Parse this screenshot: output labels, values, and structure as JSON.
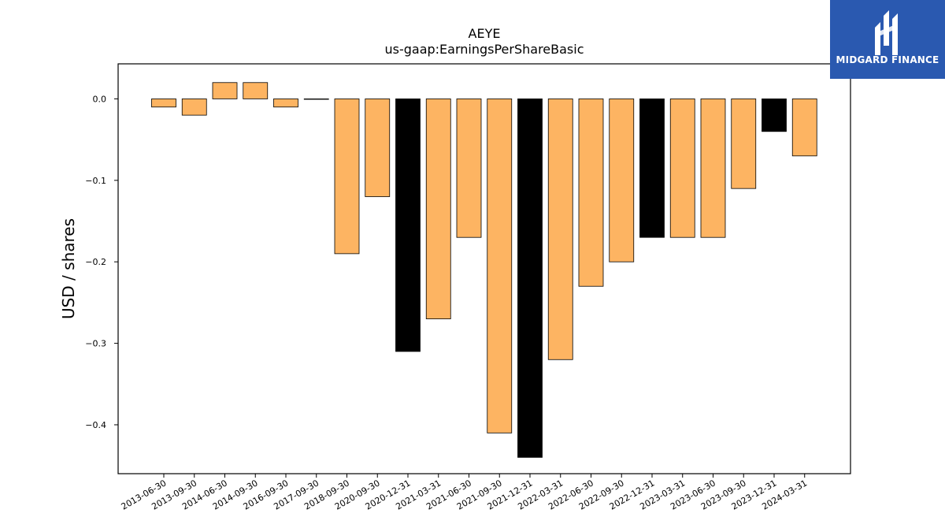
{
  "chart_data": {
    "type": "bar",
    "title": "AEYE",
    "subtitle": "us-gaap:EarningsPerShareBasic",
    "xlabel": "",
    "ylabel": "USD / shares",
    "ylim": [
      -0.46,
      0.043
    ],
    "yticks": [
      0.0,
      -0.1,
      -0.2,
      -0.3,
      -0.4
    ],
    "ytick_labels": [
      "0.0",
      "−0.1",
      "−0.2",
      "−0.3",
      "−0.4"
    ],
    "grid": false,
    "categories": [
      "2013-06-30",
      "2013-09-30",
      "2014-06-30",
      "2014-09-30",
      "2016-09-30",
      "2017-09-30",
      "2018-09-30",
      "2020-09-30",
      "2020-12-31",
      "2021-03-31",
      "2021-06-30",
      "2021-09-30",
      "2021-12-31",
      "2022-03-31",
      "2022-06-30",
      "2022-09-30",
      "2022-12-31",
      "2023-03-31",
      "2023-06-30",
      "2023-09-30",
      "2023-12-31",
      "2024-03-31"
    ],
    "values": [
      -0.01,
      -0.02,
      0.02,
      0.02,
      -0.01,
      0.0,
      -0.19,
      -0.12,
      -0.31,
      -0.27,
      -0.17,
      -0.41,
      -0.44,
      -0.32,
      -0.23,
      -0.2,
      -0.17,
      -0.17,
      -0.17,
      -0.11,
      -0.04,
      -0.07
    ],
    "highlight": [
      false,
      false,
      false,
      false,
      false,
      false,
      false,
      false,
      true,
      false,
      false,
      false,
      true,
      false,
      false,
      false,
      true,
      false,
      false,
      false,
      true,
      false
    ],
    "colors": {
      "bar": "#fdb462",
      "highlight": "#000000",
      "edge": "#000000"
    }
  },
  "logo": {
    "text": "MIDGARD FINANCE",
    "background": "#2a59b0"
  }
}
